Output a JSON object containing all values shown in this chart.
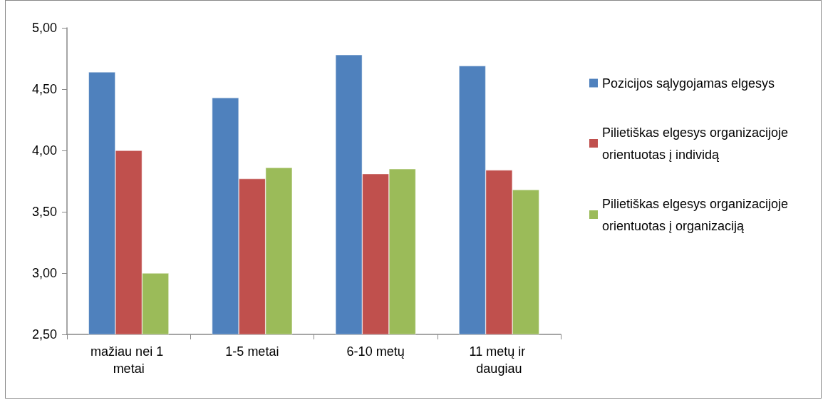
{
  "chart_data": {
    "type": "bar",
    "categories": [
      "mažiau nei 1 metai",
      "1-5 metai",
      "6-10 metų",
      "11 metų ir daugiau"
    ],
    "series": [
      {
        "name": "Pozicijos sąlygojamas elgesys",
        "color": "#4f81bd",
        "values": [
          4.64,
          4.43,
          4.78,
          4.69
        ]
      },
      {
        "name": "Pilietiškas elgesys organizacijoje orientuotas į individą",
        "color": "#c0504d",
        "values": [
          4.0,
          3.77,
          3.81,
          3.84
        ]
      },
      {
        "name": "Pilietiškas elgesys organizacijoje orientuotas į organizaciją",
        "color": "#9bbb59",
        "values": [
          3.0,
          3.86,
          3.85,
          3.68
        ]
      }
    ],
    "ylim": [
      2.5,
      5
    ],
    "yticks": [
      {
        "value": 2.5,
        "label": "2,50"
      },
      {
        "value": 3,
        "label": "3,00"
      },
      {
        "value": 3.5,
        "label": "3,50"
      },
      {
        "value": 4,
        "label": "4,00"
      },
      {
        "value": 4.5,
        "label": "4,50"
      },
      {
        "value": 5,
        "label": "5,00"
      }
    ],
    "grid": false,
    "legend": "right"
  }
}
